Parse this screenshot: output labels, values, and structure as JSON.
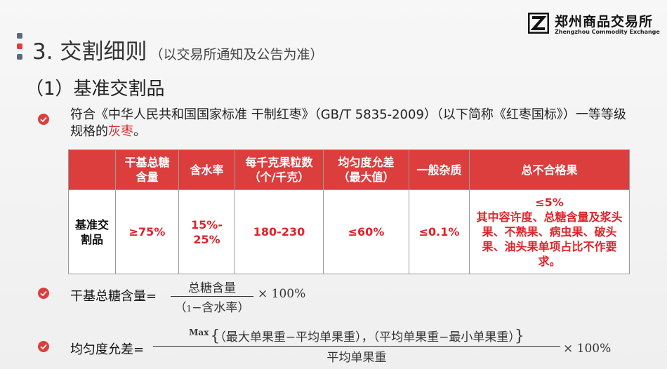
{
  "slide": {
    "title": "3. 交割细则",
    "title_note": "（以交易所通知及公告为准）",
    "logo": {
      "cn": "郑州商品交易所",
      "en": "Zhengzhou Commodity Exchange"
    },
    "section": "（1）基准交割品",
    "intro_text": "符合《中华人民共和国国家标准 干制红枣》（GB/T 5835-2009）（以下简称《红枣国标》）一等等级规格的",
    "intro_highlight": "灰枣",
    "intro_end": "。"
  },
  "table": {
    "headers": [
      "",
      "干基总糖\n含量",
      "含水率",
      "每千克果粒数\n（个/千克）",
      "均匀度允差\n（最大值）",
      "一般杂质",
      "总不合格果"
    ],
    "row": [
      "基准交\n割品",
      "≥75%",
      "15%-\n25%",
      "180-230",
      "≤60%",
      "≤0.1%",
      "≤5%\n其中容许度、总糖含量及浆头果、不熟果、病虫果、破头果、油头果单项占比不作要求。"
    ]
  },
  "formula1": {
    "label": "干基总糖含量=",
    "numerator": "总糖含量",
    "denominator_small": "1",
    "denominator": "−含水率",
    "paren_open": "（",
    "paren_close": "）",
    "times": "× 100%"
  },
  "formula2": {
    "label": "均匀度允差=",
    "max": "Max",
    "numerator": "（最大单果重−平均单果重），（平均单果重−最小单果重）",
    "denominator": "平均单果重",
    "times": "× 100%"
  },
  "colors": {
    "accent": "#dc3e3e",
    "highlight": "#e0242a",
    "deco_gray": "#5a6a7a"
  }
}
